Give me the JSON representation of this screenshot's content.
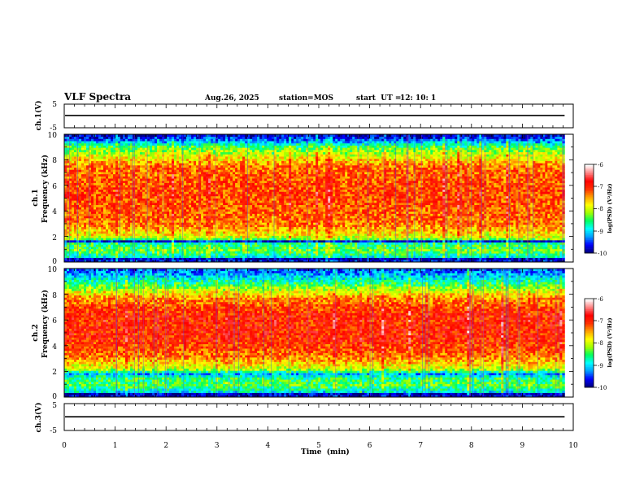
{
  "header": {
    "title": "VLF Spectra",
    "date": "Aug.26, 2025",
    "station_label": "station=MOS",
    "start_label": "start  UT =",
    "start_time": "12: 10: 1"
  },
  "chart_data": {
    "type": "heatmap",
    "x_axis": {
      "label": "Time  (min)",
      "range": [
        0,
        10
      ],
      "ticks": [
        "0",
        "1",
        "2",
        "3",
        "4",
        "5",
        "6",
        "7",
        "8",
        "9",
        "10"
      ],
      "data_end": 9.83
    },
    "panels": [
      {
        "id": "ch1-waveform",
        "kind": "line",
        "ylabel": "ch.1(V)",
        "ylim": [
          -5,
          5
        ],
        "tick_labels": [
          "5",
          "-5"
        ],
        "baseline_value": 0.2
      },
      {
        "id": "ch1-spectrogram",
        "kind": "spectrogram",
        "ylabel_top": "ch.1",
        "ylabel": "Frequency (kHz)",
        "ylim": [
          0,
          10
        ],
        "tick_labels": [
          "0",
          "2",
          "4",
          "6",
          "8",
          "10"
        ],
        "power_profile": [
          {
            "f": 0.0,
            "v": -9.6
          },
          {
            "f": 0.25,
            "v": -9.9
          },
          {
            "f": 0.4,
            "v": -8.9
          },
          {
            "f": 0.9,
            "v": -8.3
          },
          {
            "f": 1.5,
            "v": -8.7
          },
          {
            "f": 1.65,
            "v": -9.8
          },
          {
            "f": 1.85,
            "v": -8.0
          },
          {
            "f": 3.0,
            "v": -7.3
          },
          {
            "f": 5.5,
            "v": -7.1
          },
          {
            "f": 7.5,
            "v": -7.3
          },
          {
            "f": 8.3,
            "v": -7.9
          },
          {
            "f": 9.0,
            "v": -8.4
          },
          {
            "f": 9.5,
            "v": -9.3
          },
          {
            "f": 10.0,
            "v": -9.9
          }
        ],
        "colorbar": {
          "label": "log(PSD) (V²/Hz)",
          "range": [
            -10,
            -6
          ],
          "tick_labels": [
            "-6",
            "-7",
            "-8",
            "-9",
            "-10"
          ]
        }
      },
      {
        "id": "ch2-spectrogram",
        "kind": "spectrogram",
        "ylabel_top": "ch.2",
        "ylabel": "Frequency (kHz)",
        "ylim": [
          0,
          10
        ],
        "tick_labels": [
          "0",
          "2",
          "4",
          "6",
          "8",
          "10"
        ],
        "power_profile": [
          {
            "f": 0.0,
            "v": -9.7
          },
          {
            "f": 0.25,
            "v": -9.9
          },
          {
            "f": 0.4,
            "v": -9.0
          },
          {
            "f": 0.9,
            "v": -8.4
          },
          {
            "f": 1.5,
            "v": -8.6
          },
          {
            "f": 1.8,
            "v": -9.2
          },
          {
            "f": 2.2,
            "v": -8.0
          },
          {
            "f": 3.2,
            "v": -7.3
          },
          {
            "f": 4.5,
            "v": -6.95
          },
          {
            "f": 6.5,
            "v": -6.95
          },
          {
            "f": 7.7,
            "v": -7.4
          },
          {
            "f": 8.5,
            "v": -8.2
          },
          {
            "f": 9.2,
            "v": -8.9
          },
          {
            "f": 10.0,
            "v": -9.5
          }
        ],
        "colorbar": {
          "label": "log(PSD) (V²/Hz)",
          "range": [
            -10,
            -6
          ],
          "tick_labels": [
            "-6",
            "-7",
            "-8",
            "-9",
            "-10"
          ]
        }
      },
      {
        "id": "ch3-waveform",
        "kind": "line",
        "ylabel": "ch.3(V)",
        "ylim": [
          -5,
          5
        ],
        "tick_labels": [
          "5",
          "-5"
        ],
        "baseline_value": 0.1
      }
    ],
    "colormap": [
      "#000080",
      "#0000ff",
      "#00a0ff",
      "#00ffff",
      "#00ff60",
      "#a0ff00",
      "#ffff00",
      "#ffa000",
      "#ff3000",
      "#ff0000",
      "#ff8080",
      "#ffffff"
    ]
  }
}
